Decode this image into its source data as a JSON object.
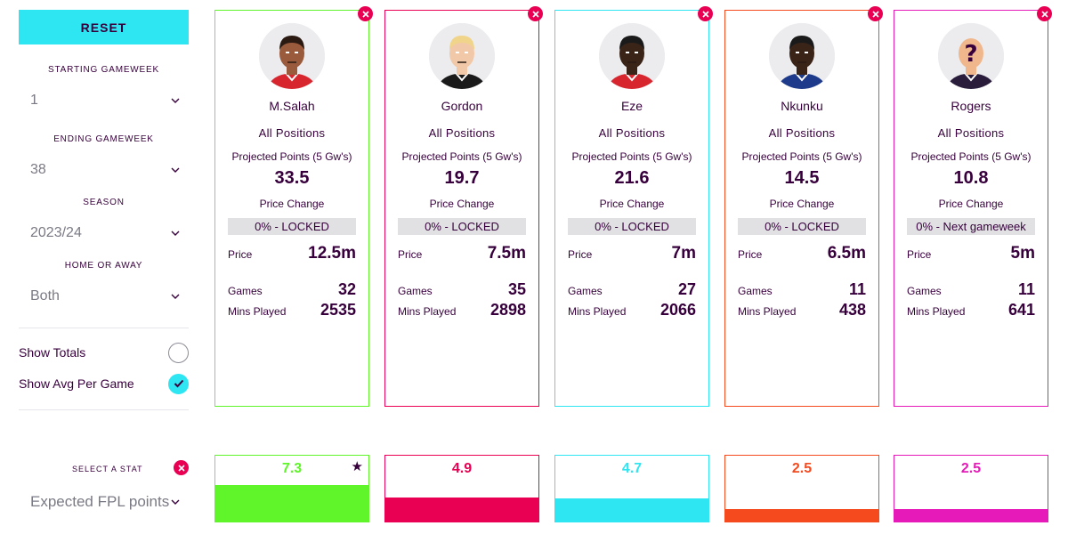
{
  "sidebar": {
    "reset_label": "RESET",
    "filters": [
      {
        "label": "STARTING GAMEWEEK",
        "value": "1"
      },
      {
        "label": "ENDING GAMEWEEK",
        "value": "38"
      },
      {
        "label": "SEASON",
        "value": "2023/24"
      },
      {
        "label": "HOME OR AWAY",
        "value": "Both"
      }
    ],
    "toggles": [
      {
        "label": "Show Totals",
        "checked": false
      },
      {
        "label": "Show Avg Per Game",
        "checked": true
      }
    ]
  },
  "labels": {
    "projected": "Projected Points (5 Gw's)",
    "price_change": "Price Change",
    "price": "Price",
    "games": "Games",
    "mins": "Mins Played"
  },
  "players": [
    {
      "name": "M.Salah",
      "positions": "All Positions",
      "projected": "33.5",
      "price_change": "0% - LOCKED",
      "price": "12.5m",
      "games": "32",
      "mins": "2535",
      "color": "#5ff52a",
      "avatar": "salah-avatar"
    },
    {
      "name": "Gordon",
      "positions": "All Positions",
      "projected": "19.7",
      "price_change": "0% - LOCKED",
      "price": "7.5m",
      "games": "35",
      "mins": "2898",
      "color": "#e90052",
      "avatar": "gordon-avatar"
    },
    {
      "name": "Eze",
      "positions": "All Positions",
      "projected": "21.6",
      "price_change": "0% - LOCKED",
      "price": "7m",
      "games": "27",
      "mins": "2066",
      "color": "#2ee6f2",
      "avatar": "eze-avatar"
    },
    {
      "name": "Nkunku",
      "positions": "All Positions",
      "projected": "14.5",
      "price_change": "0% - LOCKED",
      "price": "6.5m",
      "games": "11",
      "mins": "438",
      "color": "#f54a1e",
      "avatar": "nkunku-avatar"
    },
    {
      "name": "Rogers",
      "positions": "All Positions",
      "projected": "10.8",
      "price_change": "0% - Next gameweek",
      "price": "5m",
      "games": "11",
      "mins": "641",
      "color": "#e61ab8",
      "avatar": "unknown-player-avatar"
    }
  ],
  "stat_select": {
    "title": "SELECT A STAT",
    "value": "Expected FPL points"
  },
  "stats": [
    {
      "value": "7.3",
      "fill": 0.55,
      "star": true
    },
    {
      "value": "4.9",
      "fill": 0.37,
      "star": false
    },
    {
      "value": "4.7",
      "fill": 0.35,
      "star": false
    },
    {
      "value": "2.5",
      "fill": 0.19,
      "star": false
    },
    {
      "value": "2.5",
      "fill": 0.19,
      "star": false
    }
  ]
}
